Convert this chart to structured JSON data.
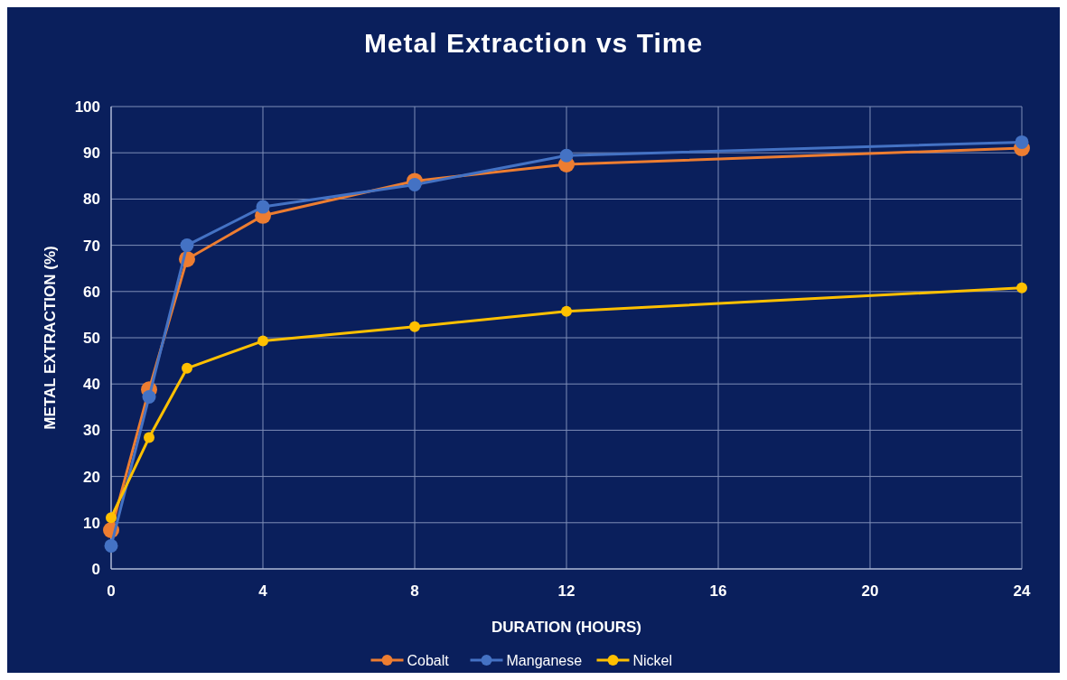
{
  "chart_data": {
    "type": "line",
    "title": "Metal Extraction vs Time",
    "xlabel": "DURATION (HOURS)",
    "ylabel": "METAL EXTRACTION (%)",
    "x": [
      0,
      1,
      2,
      4,
      8,
      12,
      24
    ],
    "xlim": [
      0,
      24
    ],
    "xticks": [
      0,
      4,
      8,
      12,
      16,
      20,
      24
    ],
    "ylim": [
      0,
      100
    ],
    "yticks": [
      0,
      10,
      20,
      30,
      40,
      50,
      60,
      70,
      80,
      90,
      100
    ],
    "grid": true,
    "legend": "bottom",
    "marker": "circle",
    "line_style": "solid",
    "series": [
      {
        "name": "Cobalt",
        "color": "#ed7d31",
        "values": [
          8.4,
          38.8,
          67.0,
          76.4,
          83.9,
          87.5,
          91.0
        ]
      },
      {
        "name": "Manganese",
        "color": "#4472c4",
        "values": [
          5.0,
          37.2,
          70.0,
          78.3,
          83.1,
          89.4,
          92.3
        ]
      },
      {
        "name": "Nickel",
        "color": "#ffc000",
        "values": [
          11.1,
          28.4,
          43.4,
          49.3,
          52.4,
          55.7,
          60.8
        ]
      }
    ]
  }
}
